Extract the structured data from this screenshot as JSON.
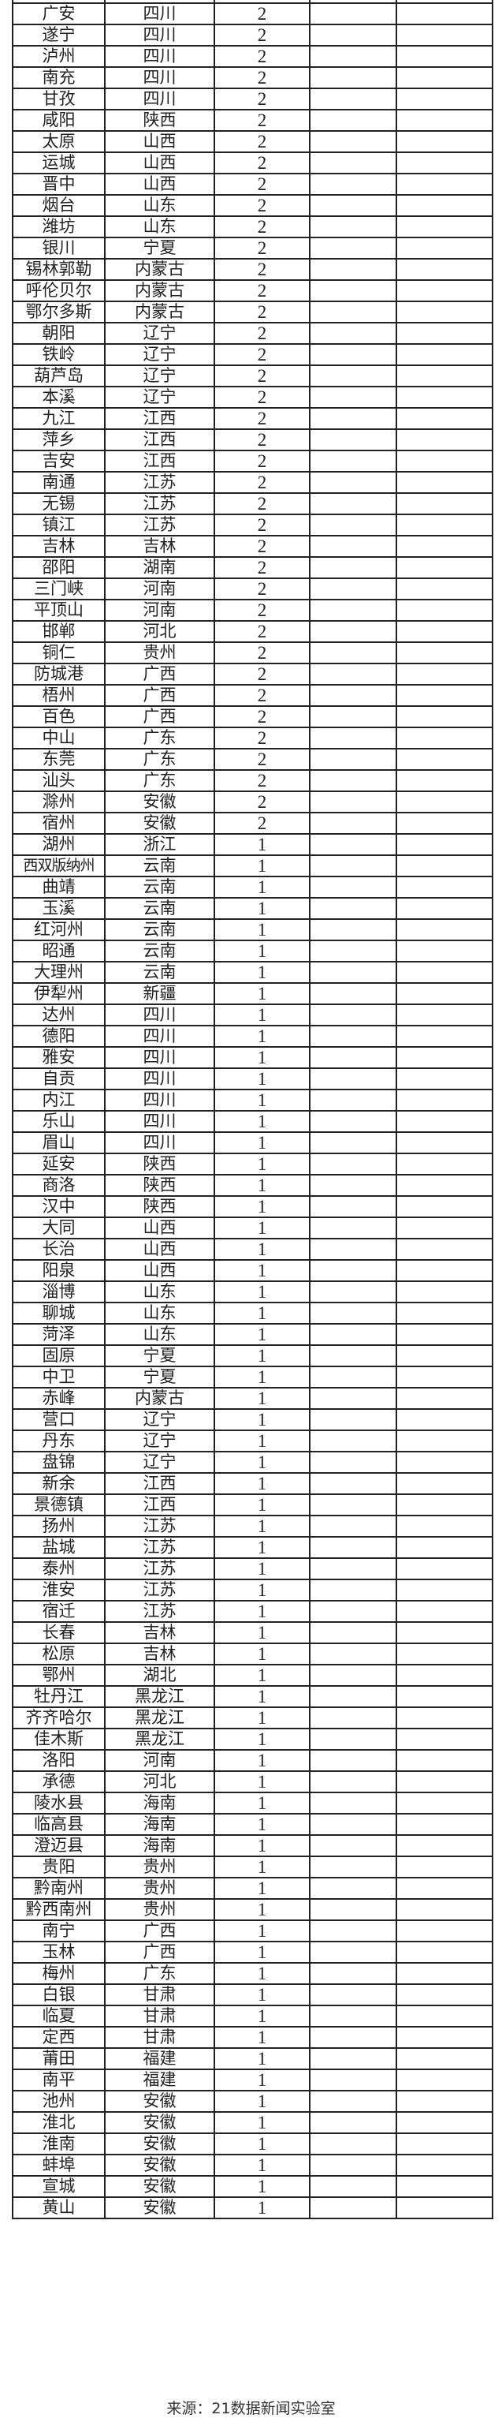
{
  "rows": [
    {
      "city": "广安",
      "province": "四川",
      "count": "2"
    },
    {
      "city": "遂宁",
      "province": "四川",
      "count": "2"
    },
    {
      "city": "泸州",
      "province": "四川",
      "count": "2"
    },
    {
      "city": "南充",
      "province": "四川",
      "count": "2"
    },
    {
      "city": "甘孜",
      "province": "四川",
      "count": "2"
    },
    {
      "city": "咸阳",
      "province": "陕西",
      "count": "2"
    },
    {
      "city": "太原",
      "province": "山西",
      "count": "2"
    },
    {
      "city": "运城",
      "province": "山西",
      "count": "2"
    },
    {
      "city": "晋中",
      "province": "山西",
      "count": "2"
    },
    {
      "city": "烟台",
      "province": "山东",
      "count": "2"
    },
    {
      "city": "潍坊",
      "province": "山东",
      "count": "2"
    },
    {
      "city": "银川",
      "province": "宁夏",
      "count": "2"
    },
    {
      "city": "锡林郭勒",
      "province": "内蒙古",
      "count": "2"
    },
    {
      "city": "呼伦贝尔",
      "province": "内蒙古",
      "count": "2"
    },
    {
      "city": "鄂尔多斯",
      "province": "内蒙古",
      "count": "2"
    },
    {
      "city": "朝阳",
      "province": "辽宁",
      "count": "2"
    },
    {
      "city": "铁岭",
      "province": "辽宁",
      "count": "2"
    },
    {
      "city": "葫芦岛",
      "province": "辽宁",
      "count": "2"
    },
    {
      "city": "本溪",
      "province": "辽宁",
      "count": "2"
    },
    {
      "city": "九江",
      "province": "江西",
      "count": "2"
    },
    {
      "city": "萍乡",
      "province": "江西",
      "count": "2"
    },
    {
      "city": "吉安",
      "province": "江西",
      "count": "2"
    },
    {
      "city": "南通",
      "province": "江苏",
      "count": "2"
    },
    {
      "city": "无锡",
      "province": "江苏",
      "count": "2"
    },
    {
      "city": "镇江",
      "province": "江苏",
      "count": "2"
    },
    {
      "city": "吉林",
      "province": "吉林",
      "count": "2"
    },
    {
      "city": "邵阳",
      "province": "湖南",
      "count": "2"
    },
    {
      "city": "三门峡",
      "province": "河南",
      "count": "2"
    },
    {
      "city": "平顶山",
      "province": "河南",
      "count": "2"
    },
    {
      "city": "邯郸",
      "province": "河北",
      "count": "2"
    },
    {
      "city": "铜仁",
      "province": "贵州",
      "count": "2"
    },
    {
      "city": "防城港",
      "province": "广西",
      "count": "2"
    },
    {
      "city": "梧州",
      "province": "广西",
      "count": "2"
    },
    {
      "city": "百色",
      "province": "广西",
      "count": "2"
    },
    {
      "city": "中山",
      "province": "广东",
      "count": "2"
    },
    {
      "city": "东莞",
      "province": "广东",
      "count": "2"
    },
    {
      "city": "汕头",
      "province": "广东",
      "count": "2"
    },
    {
      "city": "滁州",
      "province": "安徽",
      "count": "2"
    },
    {
      "city": "宿州",
      "province": "安徽",
      "count": "2"
    },
    {
      "city": "湖州",
      "province": "浙江",
      "count": "1"
    },
    {
      "city": "西双版纳州",
      "province": "云南",
      "count": "1"
    },
    {
      "city": "曲靖",
      "province": "云南",
      "count": "1"
    },
    {
      "city": "玉溪",
      "province": "云南",
      "count": "1"
    },
    {
      "city": "红河州",
      "province": "云南",
      "count": "1"
    },
    {
      "city": "昭通",
      "province": "云南",
      "count": "1"
    },
    {
      "city": "大理州",
      "province": "云南",
      "count": "1"
    },
    {
      "city": "伊犁州",
      "province": "新疆",
      "count": "1"
    },
    {
      "city": "达州",
      "province": "四川",
      "count": "1"
    },
    {
      "city": "德阳",
      "province": "四川",
      "count": "1"
    },
    {
      "city": "雅安",
      "province": "四川",
      "count": "1"
    },
    {
      "city": "自贡",
      "province": "四川",
      "count": "1"
    },
    {
      "city": "内江",
      "province": "四川",
      "count": "1"
    },
    {
      "city": "乐山",
      "province": "四川",
      "count": "1"
    },
    {
      "city": "眉山",
      "province": "四川",
      "count": "1"
    },
    {
      "city": "延安",
      "province": "陕西",
      "count": "1"
    },
    {
      "city": "商洛",
      "province": "陕西",
      "count": "1"
    },
    {
      "city": "汉中",
      "province": "陕西",
      "count": "1"
    },
    {
      "city": "大同",
      "province": "山西",
      "count": "1"
    },
    {
      "city": "长治",
      "province": "山西",
      "count": "1"
    },
    {
      "city": "阳泉",
      "province": "山西",
      "count": "1"
    },
    {
      "city": "淄博",
      "province": "山东",
      "count": "1"
    },
    {
      "city": "聊城",
      "province": "山东",
      "count": "1"
    },
    {
      "city": "菏泽",
      "province": "山东",
      "count": "1"
    },
    {
      "city": "固原",
      "province": "宁夏",
      "count": "1"
    },
    {
      "city": "中卫",
      "province": "宁夏",
      "count": "1"
    },
    {
      "city": "赤峰",
      "province": "内蒙古",
      "count": "1"
    },
    {
      "city": "营口",
      "province": "辽宁",
      "count": "1"
    },
    {
      "city": "丹东",
      "province": "辽宁",
      "count": "1"
    },
    {
      "city": "盘锦",
      "province": "辽宁",
      "count": "1"
    },
    {
      "city": "新余",
      "province": "江西",
      "count": "1"
    },
    {
      "city": "景德镇",
      "province": "江西",
      "count": "1"
    },
    {
      "city": "扬州",
      "province": "江苏",
      "count": "1"
    },
    {
      "city": "盐城",
      "province": "江苏",
      "count": "1"
    },
    {
      "city": "泰州",
      "province": "江苏",
      "count": "1"
    },
    {
      "city": "淮安",
      "province": "江苏",
      "count": "1"
    },
    {
      "city": "宿迁",
      "province": "江苏",
      "count": "1"
    },
    {
      "city": "长春",
      "province": "吉林",
      "count": "1"
    },
    {
      "city": "松原",
      "province": "吉林",
      "count": "1"
    },
    {
      "city": "鄂州",
      "province": "湖北",
      "count": "1"
    },
    {
      "city": "牡丹江",
      "province": "黑龙江",
      "count": "1"
    },
    {
      "city": "齐齐哈尔",
      "province": "黑龙江",
      "count": "1"
    },
    {
      "city": "佳木斯",
      "province": "黑龙江",
      "count": "1"
    },
    {
      "city": "洛阳",
      "province": "河南",
      "count": "1"
    },
    {
      "city": "承德",
      "province": "河北",
      "count": "1"
    },
    {
      "city": "陵水县",
      "province": "海南",
      "count": "1"
    },
    {
      "city": "临高县",
      "province": "海南",
      "count": "1"
    },
    {
      "city": "澄迈县",
      "province": "海南",
      "count": "1"
    },
    {
      "city": "贵阳",
      "province": "贵州",
      "count": "1"
    },
    {
      "city": "黔南州",
      "province": "贵州",
      "count": "1"
    },
    {
      "city": "黔西南州",
      "province": "贵州",
      "count": "1"
    },
    {
      "city": "南宁",
      "province": "广西",
      "count": "1"
    },
    {
      "city": "玉林",
      "province": "广西",
      "count": "1"
    },
    {
      "city": "梅州",
      "province": "广东",
      "count": "1"
    },
    {
      "city": "白银",
      "province": "甘肃",
      "count": "1"
    },
    {
      "city": "临夏",
      "province": "甘肃",
      "count": "1"
    },
    {
      "city": "定西",
      "province": "甘肃",
      "count": "1"
    },
    {
      "city": "莆田",
      "province": "福建",
      "count": "1"
    },
    {
      "city": "南平",
      "province": "福建",
      "count": "1"
    },
    {
      "city": "池州",
      "province": "安徽",
      "count": "1"
    },
    {
      "city": "淮北",
      "province": "安徽",
      "count": "1"
    },
    {
      "city": "淮南",
      "province": "安徽",
      "count": "1"
    },
    {
      "city": "蚌埠",
      "province": "安徽",
      "count": "1"
    },
    {
      "city": "宣城",
      "province": "安徽",
      "count": "1"
    },
    {
      "city": "黄山",
      "province": "安徽",
      "count": "1"
    }
  ],
  "footer": {
    "source": "来源：21数据新闻实验室"
  }
}
